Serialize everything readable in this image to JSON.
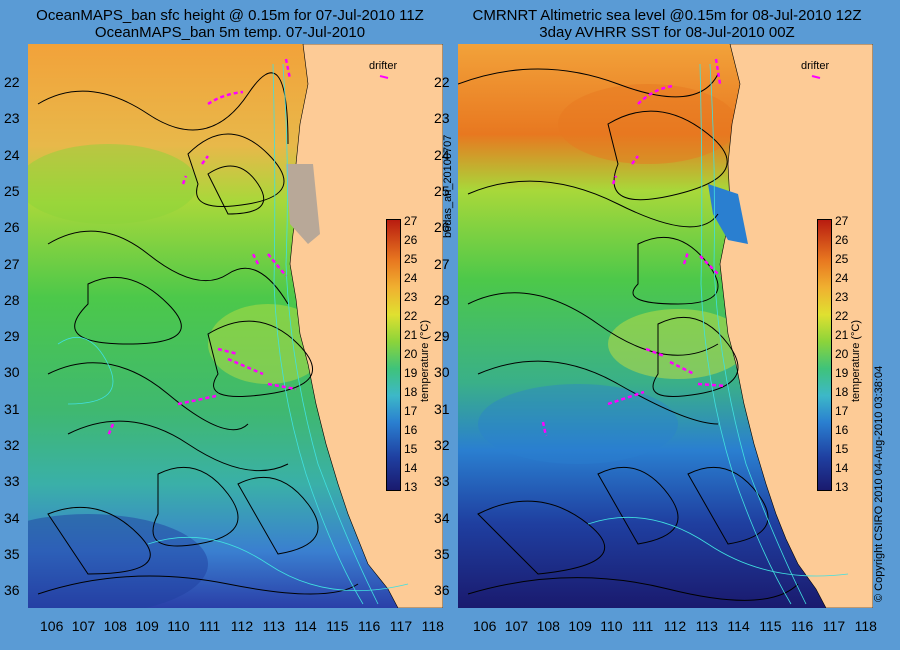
{
  "titles": {
    "left_line1": "OceanMAPS_ban sfc height @ 0.15m for 07-Jul-2010 11Z",
    "left_line2": "OceanMAPS_ban 5m temp. 07-Jul-2010",
    "right_line1": "CMRNRT Altimetric sea level  @0.15m  for 08-Jul-2010 12Z",
    "right_line2": "3day AVHRR SST for 08-Jul-2010 00Z"
  },
  "side_labels": {
    "middle": "bodas_an_20100707",
    "right": "© Copyright CSIRO 2010    04-Aug-2010 03:38:04"
  },
  "drifter_label": "drifter",
  "y_axis_ticks": [
    "22",
    "23",
    "24",
    "25",
    "26",
    "27",
    "28",
    "29",
    "30",
    "31",
    "32",
    "33",
    "34",
    "35",
    "36"
  ],
  "x_axis_ticks": [
    "106",
    "107",
    "108",
    "109",
    "110",
    "111",
    "112",
    "113",
    "114",
    "115",
    "116",
    "117",
    "118"
  ],
  "colorbar": {
    "title": "temperature (°C)",
    "ticks": [
      "27",
      "26",
      "25",
      "24",
      "23",
      "22",
      "21",
      "20",
      "19",
      "18",
      "17",
      "16",
      "15",
      "14",
      "13"
    ]
  },
  "colors": {
    "land": "#fdcb96",
    "ocean_bg": "#5a9bd5",
    "drifter": "#ff00ff",
    "contour": "#000000",
    "bathymetry": "#40e0e0"
  }
}
